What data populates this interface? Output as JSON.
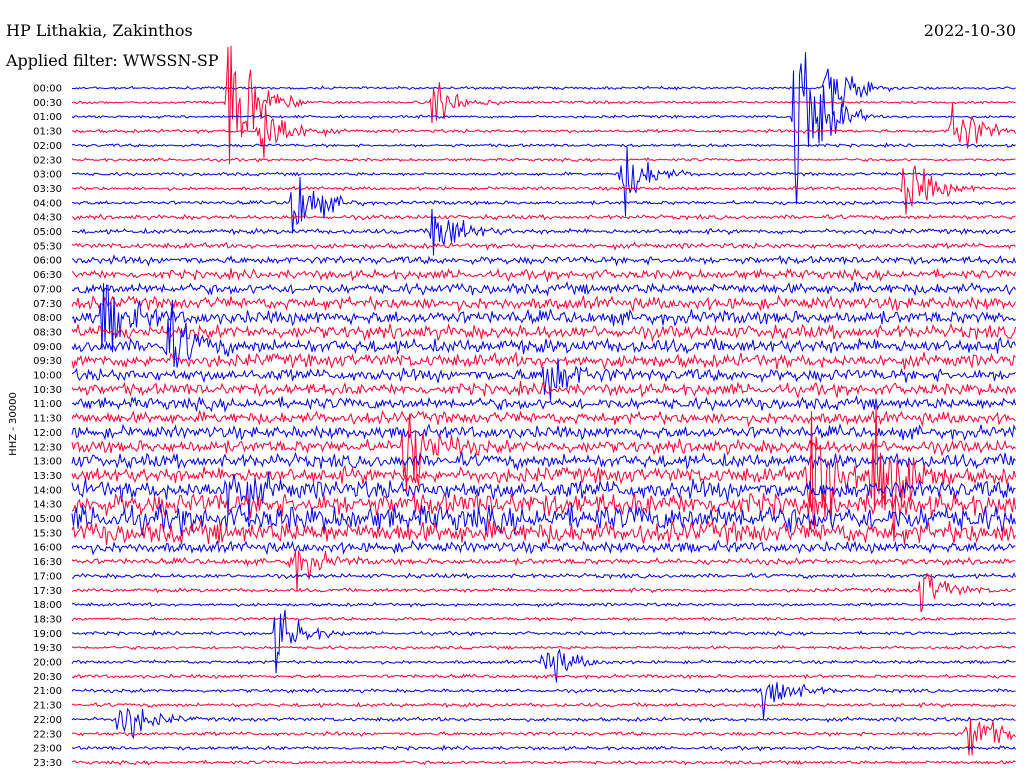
{
  "chart_data": {
    "type": "line",
    "title": "HP Lithakia, Zakinthos",
    "date": "2022-10-30",
    "subtitle": "Applied filter: WWSSN-SP",
    "ylabel": "HHZ - 30000",
    "legend": "none",
    "grid": false,
    "series_colors": [
      "#0000ee",
      "#ff0033"
    ],
    "rows": [
      "00:00",
      "00:30",
      "01:00",
      "01:30",
      "02:00",
      "02:30",
      "03:00",
      "03:30",
      "04:00",
      "04:30",
      "05:00",
      "05:30",
      "06:00",
      "06:30",
      "07:00",
      "07:30",
      "08:00",
      "08:30",
      "09:00",
      "09:30",
      "10:00",
      "10:30",
      "11:00",
      "11:30",
      "12:00",
      "12:30",
      "13:00",
      "13:30",
      "14:00",
      "14:30",
      "15:00",
      "15:30",
      "16:00",
      "16:30",
      "17:00",
      "17:30",
      "18:00",
      "18:30",
      "19:00",
      "19:30",
      "20:00",
      "20:30",
      "21:00",
      "21:30",
      "22:00",
      "22:30",
      "23:00",
      "23:30"
    ],
    "row_noise": [
      0.1,
      0.1,
      0.1,
      0.12,
      0.11,
      0.11,
      0.12,
      0.12,
      0.14,
      0.16,
      0.18,
      0.2,
      0.28,
      0.34,
      0.4,
      0.46,
      0.5,
      0.5,
      0.52,
      0.5,
      0.46,
      0.44,
      0.44,
      0.44,
      0.46,
      0.48,
      0.52,
      0.58,
      0.7,
      0.85,
      0.95,
      0.8,
      0.4,
      0.22,
      0.16,
      0.14,
      0.12,
      0.12,
      0.12,
      0.12,
      0.12,
      0.13,
      0.13,
      0.14,
      0.14,
      0.14,
      0.13,
      0.13
    ],
    "minutes_per_row": 30,
    "events": [
      {
        "row": 2,
        "minute": 23,
        "amp": 18
      },
      {
        "row": 0,
        "minute": 24,
        "amp": 6
      },
      {
        "row": 1,
        "minute": 5,
        "amp": 14
      },
      {
        "row": 27,
        "minute": 23.5,
        "amp": 16
      },
      {
        "row": 27,
        "minute": 25.5,
        "amp": 18
      },
      {
        "row": 25,
        "minute": 10.5,
        "amp": 10
      },
      {
        "row": 1,
        "minute": 11.5,
        "amp": 4
      },
      {
        "row": 3,
        "minute": 6,
        "amp": 7
      },
      {
        "row": 6,
        "minute": 17.5,
        "amp": 6
      },
      {
        "row": 3,
        "minute": 28,
        "amp": 6
      },
      {
        "row": 7,
        "minute": 26.5,
        "amp": 6
      },
      {
        "row": 8,
        "minute": 7,
        "amp": 7
      },
      {
        "row": 10,
        "minute": 11.5,
        "amp": 6
      },
      {
        "row": 16,
        "minute": 1,
        "amp": 6
      },
      {
        "row": 18,
        "minute": 3,
        "amp": 6
      },
      {
        "row": 20,
        "minute": 15,
        "amp": 5
      },
      {
        "row": 28,
        "minute": 5,
        "amp": 5
      },
      {
        "row": 38,
        "minute": 6.5,
        "amp": 5
      },
      {
        "row": 40,
        "minute": 15,
        "amp": 4
      },
      {
        "row": 42,
        "minute": 22,
        "amp": 5
      },
      {
        "row": 44,
        "minute": 1.5,
        "amp": 5
      },
      {
        "row": 45,
        "minute": 28.5,
        "amp": 5
      },
      {
        "row": 35,
        "minute": 27,
        "amp": 4
      },
      {
        "row": 33,
        "minute": 7,
        "amp": 4
      }
    ],
    "ylim": [
      -1,
      1
    ]
  }
}
